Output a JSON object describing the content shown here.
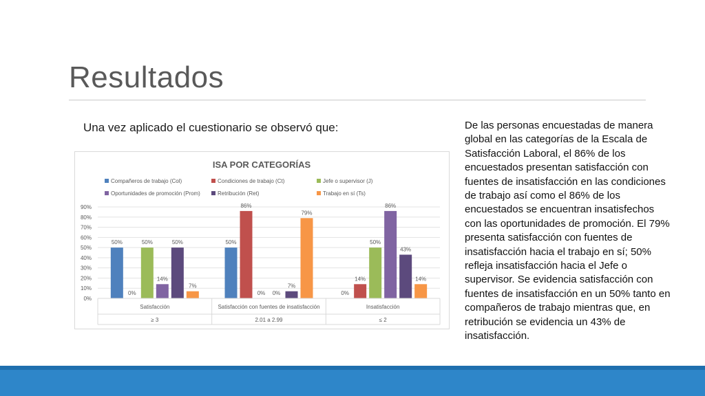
{
  "slide": {
    "title": "Resultados",
    "subtitle": "Una vez aplicado el cuestionario se observó que:",
    "side_text": "De las personas encuestadas de manera global en las categorías de la Escala de Satisfacción Laboral, el 86% de los encuestados presentan satisfacción con fuentes de insatisfacción  en las condiciones de trabajo así como el 86% de los encuestados se encuentran insatisfechos con las oportunidades de promoción. El 79% presenta satisfacción con fuentes de insatisfacción hacia el trabajo en sí; 50% refleja insatisfacción hacia el Jefe o supervisor. Se evidencia satisfacción con fuentes de insatisfacción en un 50% tanto en compañeros de trabajo mientras que,  en retribución se evidencia un 43% de insatisfacción."
  },
  "chart_data": {
    "type": "bar",
    "title": "ISA POR CATEGORÍAS",
    "categories": [
      "Satisfacción",
      "Satisfacción con fuentes de insatisfacción",
      "Insatisfacción"
    ],
    "category_ranges": [
      "≥ 3",
      "2.01 a 2.99",
      "≤ 2"
    ],
    "series": [
      {
        "name": "Compañeros de trabajo (Col)",
        "color": "#4f81bd",
        "values": [
          50,
          50,
          0
        ]
      },
      {
        "name": "Condiciones de trabajo (Ct)",
        "color": "#c0504d",
        "values": [
          0,
          86,
          14
        ]
      },
      {
        "name": "Jefe o supervisor (J)",
        "color": "#9bbb59",
        "values": [
          50,
          0,
          50
        ]
      },
      {
        "name": "Oportunidades de promoción (Prom)",
        "color": "#8064a2",
        "values": [
          14,
          0,
          86
        ]
      },
      {
        "name": "Retribución (Ret)",
        "color": "#5c4a7d",
        "values": [
          50,
          7,
          43
        ]
      },
      {
        "name": "Trabajo en sí (Ts)",
        "color": "#f79646",
        "values": [
          7,
          79,
          14
        ]
      }
    ],
    "value_suffix": "%",
    "ylim": [
      0,
      90
    ],
    "yticks": [
      "0%",
      "10%",
      "20%",
      "30%",
      "40%",
      "50%",
      "60%",
      "70%",
      "80%",
      "90%"
    ],
    "legend_position": "top",
    "grid": true
  }
}
